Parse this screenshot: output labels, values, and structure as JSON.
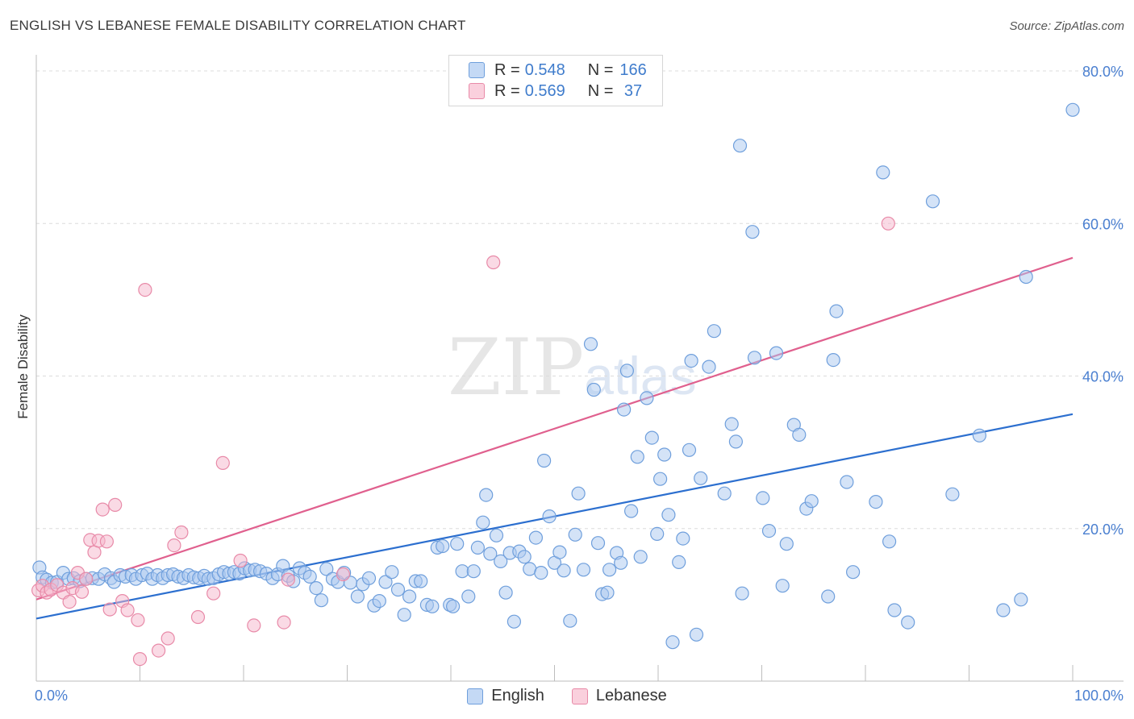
{
  "title": "ENGLISH VS LEBANESE FEMALE DISABILITY CORRELATION CHART",
  "source": "Source: ZipAtlas.com",
  "watermark": {
    "zip": "ZIP",
    "atlas": "atlas"
  },
  "legend": {
    "rows": [
      {
        "r_label": "R = ",
        "r_value": "0.548",
        "n_label": "N = ",
        "n_value": "166",
        "color": "#a9c8f0"
      },
      {
        "r_label": "R = ",
        "r_value": "0.569",
        "n_label": "N = ",
        "n_value": " 37",
        "color": "#f6b6cb"
      }
    ]
  },
  "colors": {
    "english_fill": "#a9c8f0",
    "english_stroke": "#6f9fdc",
    "english_line": "#2c6fcf",
    "lebanese_fill": "#f6b6cb",
    "lebanese_stroke": "#e88aa8",
    "lebanese_line": "#e0608e",
    "grid": "#dcdcdc",
    "tick_text": "#4a7fd0"
  },
  "chart_data": {
    "type": "scatter",
    "title": "ENGLISH VS LEBANESE FEMALE DISABILITY CORRELATION CHART",
    "xlabel": "",
    "ylabel": "Female Disability",
    "xlim": [
      0,
      100
    ],
    "ylim": [
      0,
      80
    ],
    "x_tick_labels": [
      "0.0%",
      "100.0%"
    ],
    "y_tick_labels": [
      {
        "value": 20,
        "label": "20.0%"
      },
      {
        "value": 40,
        "label": "40.0%"
      },
      {
        "value": 60,
        "label": "60.0%"
      },
      {
        "value": 80,
        "label": "80.0%"
      }
    ],
    "grid": "dashed horizontal",
    "legend_position": "bottom-center",
    "series": [
      {
        "name": "English",
        "trend": {
          "x": [
            0,
            100
          ],
          "y": [
            8.2,
            35.0
          ]
        },
        "points": [
          [
            0.3,
            14.9
          ],
          [
            0.6,
            13.6
          ],
          [
            1.0,
            13.3
          ],
          [
            1.5,
            12.9
          ],
          [
            2.0,
            13.0
          ],
          [
            2.6,
            14.2
          ],
          [
            3.1,
            13.4
          ],
          [
            3.6,
            13.5
          ],
          [
            4.2,
            13.1
          ],
          [
            4.8,
            13.4
          ],
          [
            5.4,
            13.5
          ],
          [
            6.0,
            13.4
          ],
          [
            6.6,
            14.0
          ],
          [
            7.2,
            13.5
          ],
          [
            7.5,
            13.0
          ],
          [
            8.1,
            13.9
          ],
          [
            8.6,
            13.7
          ],
          [
            9.2,
            13.9
          ],
          [
            9.6,
            13.4
          ],
          [
            10.2,
            13.9
          ],
          [
            10.7,
            14.1
          ],
          [
            11.2,
            13.4
          ],
          [
            11.7,
            13.9
          ],
          [
            12.2,
            13.5
          ],
          [
            12.7,
            13.9
          ],
          [
            13.2,
            14.0
          ],
          [
            13.7,
            13.7
          ],
          [
            14.2,
            13.5
          ],
          [
            14.7,
            13.9
          ],
          [
            15.2,
            13.6
          ],
          [
            15.7,
            13.5
          ],
          [
            16.2,
            13.8
          ],
          [
            16.6,
            13.4
          ],
          [
            17.1,
            13.5
          ],
          [
            17.6,
            14.0
          ],
          [
            18.1,
            14.3
          ],
          [
            18.6,
            14.1
          ],
          [
            19.1,
            14.3
          ],
          [
            19.6,
            14.1
          ],
          [
            20.1,
            14.8
          ],
          [
            20.6,
            14.5
          ],
          [
            21.1,
            14.6
          ],
          [
            21.6,
            14.4
          ],
          [
            22.2,
            14.1
          ],
          [
            22.8,
            13.5
          ],
          [
            23.3,
            14.0
          ],
          [
            23.8,
            15.1
          ],
          [
            24.3,
            13.8
          ],
          [
            24.8,
            13.1
          ],
          [
            25.4,
            14.8
          ],
          [
            25.9,
            14.2
          ],
          [
            26.4,
            13.7
          ],
          [
            27.0,
            12.2
          ],
          [
            27.5,
            10.6
          ],
          [
            28.0,
            14.7
          ],
          [
            28.6,
            13.4
          ],
          [
            29.1,
            13.0
          ],
          [
            29.7,
            14.2
          ],
          [
            30.3,
            12.9
          ],
          [
            31.0,
            11.1
          ],
          [
            31.5,
            12.7
          ],
          [
            32.1,
            13.5
          ],
          [
            32.6,
            9.9
          ],
          [
            33.1,
            10.5
          ],
          [
            33.7,
            13.0
          ],
          [
            34.3,
            14.3
          ],
          [
            34.9,
            12.0
          ],
          [
            35.5,
            8.7
          ],
          [
            36.0,
            11.1
          ],
          [
            36.6,
            13.1
          ],
          [
            37.1,
            13.1
          ],
          [
            37.7,
            10.0
          ],
          [
            38.2,
            9.8
          ],
          [
            38.7,
            17.5
          ],
          [
            39.2,
            17.7
          ],
          [
            39.9,
            10.0
          ],
          [
            40.2,
            9.8
          ],
          [
            40.6,
            18.0
          ],
          [
            41.1,
            14.4
          ],
          [
            41.7,
            11.1
          ],
          [
            42.2,
            14.4
          ],
          [
            42.6,
            17.5
          ],
          [
            43.1,
            20.8
          ],
          [
            43.4,
            24.4
          ],
          [
            43.8,
            16.7
          ],
          [
            44.4,
            19.1
          ],
          [
            44.8,
            15.7
          ],
          [
            45.3,
            11.6
          ],
          [
            45.7,
            16.8
          ],
          [
            46.1,
            7.8
          ],
          [
            46.6,
            17.0
          ],
          [
            47.1,
            16.3
          ],
          [
            47.6,
            14.7
          ],
          [
            48.2,
            18.8
          ],
          [
            48.7,
            14.2
          ],
          [
            49.0,
            28.9
          ],
          [
            49.5,
            21.6
          ],
          [
            50.0,
            15.5
          ],
          [
            50.5,
            16.9
          ],
          [
            50.9,
            14.5
          ],
          [
            51.5,
            7.9
          ],
          [
            52.0,
            19.2
          ],
          [
            52.3,
            24.6
          ],
          [
            52.8,
            14.6
          ],
          [
            53.5,
            44.2
          ],
          [
            53.8,
            38.2
          ],
          [
            54.2,
            18.1
          ],
          [
            54.6,
            11.4
          ],
          [
            55.1,
            11.6
          ],
          [
            55.3,
            14.6
          ],
          [
            56.0,
            16.8
          ],
          [
            56.4,
            15.5
          ],
          [
            56.7,
            35.6
          ],
          [
            57.0,
            40.7
          ],
          [
            57.4,
            22.3
          ],
          [
            58.0,
            29.4
          ],
          [
            58.3,
            16.3
          ],
          [
            58.9,
            37.1
          ],
          [
            59.4,
            31.9
          ],
          [
            59.9,
            19.3
          ],
          [
            60.2,
            26.5
          ],
          [
            60.6,
            29.7
          ],
          [
            61.0,
            21.8
          ],
          [
            61.4,
            5.1
          ],
          [
            62.0,
            15.6
          ],
          [
            62.4,
            18.7
          ],
          [
            63.0,
            30.3
          ],
          [
            63.2,
            42.0
          ],
          [
            63.7,
            6.1
          ],
          [
            64.1,
            26.6
          ],
          [
            64.9,
            41.2
          ],
          [
            65.4,
            45.9
          ],
          [
            66.4,
            24.6
          ],
          [
            67.1,
            33.7
          ],
          [
            67.5,
            31.4
          ],
          [
            67.9,
            70.2
          ],
          [
            68.1,
            11.5
          ],
          [
            69.1,
            58.9
          ],
          [
            69.3,
            42.4
          ],
          [
            70.1,
            24.0
          ],
          [
            70.7,
            19.7
          ],
          [
            71.4,
            43.0
          ],
          [
            72.0,
            12.5
          ],
          [
            72.4,
            18.0
          ],
          [
            73.1,
            33.6
          ],
          [
            73.6,
            32.3
          ],
          [
            74.3,
            22.6
          ],
          [
            74.8,
            23.6
          ],
          [
            76.4,
            11.1
          ],
          [
            76.9,
            42.1
          ],
          [
            77.2,
            48.5
          ],
          [
            78.2,
            26.1
          ],
          [
            78.8,
            14.3
          ],
          [
            81.0,
            23.5
          ],
          [
            81.7,
            66.7
          ],
          [
            82.3,
            18.3
          ],
          [
            82.8,
            9.3
          ],
          [
            84.1,
            7.7
          ],
          [
            86.5,
            62.9
          ],
          [
            88.4,
            24.5
          ],
          [
            91.0,
            32.2
          ],
          [
            93.3,
            9.3
          ],
          [
            95.0,
            10.7
          ],
          [
            95.5,
            53.0
          ],
          [
            100.0,
            74.9
          ]
        ]
      },
      {
        "name": "Lebanese",
        "trend": {
          "x": [
            0,
            100
          ],
          "y": [
            10.7,
            55.5
          ]
        },
        "points": [
          [
            0.2,
            11.9
          ],
          [
            0.6,
            12.5
          ],
          [
            1.0,
            11.6
          ],
          [
            1.4,
            12.0
          ],
          [
            2.0,
            12.6
          ],
          [
            2.6,
            11.6
          ],
          [
            3.2,
            10.4
          ],
          [
            3.5,
            12.2
          ],
          [
            4.0,
            14.2
          ],
          [
            4.4,
            11.7
          ],
          [
            4.8,
            13.4
          ],
          [
            5.2,
            18.5
          ],
          [
            5.6,
            16.9
          ],
          [
            6.0,
            18.4
          ],
          [
            6.4,
            22.5
          ],
          [
            6.8,
            18.3
          ],
          [
            7.1,
            9.4
          ],
          [
            7.6,
            23.1
          ],
          [
            8.3,
            10.5
          ],
          [
            8.8,
            9.3
          ],
          [
            9.8,
            8.0
          ],
          [
            10.0,
            2.9
          ],
          [
            10.5,
            51.3
          ],
          [
            11.8,
            4.0
          ],
          [
            12.7,
            5.6
          ],
          [
            13.3,
            17.8
          ],
          [
            14.0,
            19.5
          ],
          [
            15.6,
            8.4
          ],
          [
            17.1,
            11.5
          ],
          [
            18.0,
            28.6
          ],
          [
            19.7,
            15.8
          ],
          [
            21.0,
            7.3
          ],
          [
            23.9,
            7.7
          ],
          [
            24.3,
            13.3
          ],
          [
            29.6,
            14.0
          ],
          [
            44.1,
            54.9
          ],
          [
            82.2,
            60.0
          ]
        ]
      }
    ]
  }
}
